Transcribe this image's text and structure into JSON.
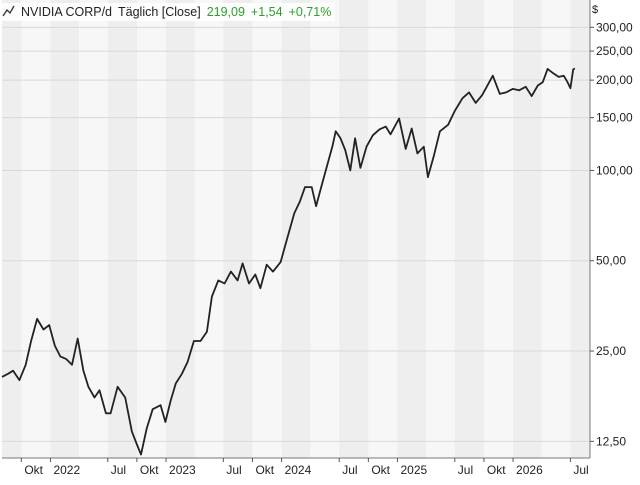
{
  "header": {
    "instrument": "NVIDIA CORP/d",
    "mode": "Täglich [Close]",
    "last": "219,09",
    "change": "+1,54",
    "change_pct": "+0,71%"
  },
  "currency_label": "$",
  "colors": {
    "line": "#222222",
    "positive": "#2ca02c",
    "band_shaded": "#eeeeee",
    "band_light": "#f7f7f7",
    "grid": "#d8d8d8",
    "text": "#222222"
  },
  "chart_data": {
    "type": "line",
    "title": "NVIDIA CORP/d",
    "y_scale": "log",
    "ylim": [
      11,
      370
    ],
    "y_ticks": [
      {
        "value": 12.5,
        "label": "12,50"
      },
      {
        "value": 25,
        "label": "25,00"
      },
      {
        "value": 50,
        "label": "50,00"
      },
      {
        "value": 100,
        "label": "100,00"
      },
      {
        "value": 150,
        "label": "150,00"
      },
      {
        "value": 200,
        "label": "200,00"
      },
      {
        "value": 250,
        "label": "250,00"
      },
      {
        "value": 300,
        "label": "300,00"
      }
    ],
    "x_range": [
      "2021-08-01",
      "2026-09-01"
    ],
    "x_ticks": [
      {
        "date": "2021-10-01",
        "label": "Okt"
      },
      {
        "date": "2022-01-01",
        "label": "2022"
      },
      {
        "date": "2022-07-01",
        "label": "Jul"
      },
      {
        "date": "2022-10-01",
        "label": "Okt"
      },
      {
        "date": "2023-01-01",
        "label": "2023"
      },
      {
        "date": "2023-07-01",
        "label": "Jul"
      },
      {
        "date": "2023-10-01",
        "label": "Okt"
      },
      {
        "date": "2024-01-01",
        "label": "2024"
      },
      {
        "date": "2024-07-01",
        "label": "Jul"
      },
      {
        "date": "2024-10-01",
        "label": "Okt"
      },
      {
        "date": "2025-01-01",
        "label": "2025"
      },
      {
        "date": "2025-07-01",
        "label": "Jul"
      },
      {
        "date": "2025-10-01",
        "label": "Okt"
      },
      {
        "date": "2026-01-01",
        "label": "2026"
      },
      {
        "date": "2026-07-01",
        "label": "Jul"
      }
    ],
    "series": [
      {
        "points": [
          [
            "2021-08-01",
            20.5
          ],
          [
            "2021-08-20",
            21.0
          ],
          [
            "2021-09-05",
            21.5
          ],
          [
            "2021-09-25",
            20.0
          ],
          [
            "2021-10-15",
            22.5
          ],
          [
            "2021-11-01",
            27.0
          ],
          [
            "2021-11-20",
            32.0
          ],
          [
            "2021-12-10",
            29.5
          ],
          [
            "2021-12-28",
            30.5
          ],
          [
            "2022-01-15",
            26.0
          ],
          [
            "2022-02-01",
            24.0
          ],
          [
            "2022-02-20",
            23.5
          ],
          [
            "2022-03-10",
            22.5
          ],
          [
            "2022-03-28",
            27.5
          ],
          [
            "2022-04-15",
            21.5
          ],
          [
            "2022-05-01",
            19.0
          ],
          [
            "2022-05-20",
            17.5
          ],
          [
            "2022-06-05",
            18.5
          ],
          [
            "2022-06-25",
            15.5
          ],
          [
            "2022-07-10",
            15.5
          ],
          [
            "2022-08-01",
            19.0
          ],
          [
            "2022-08-25",
            17.5
          ],
          [
            "2022-09-15",
            13.5
          ],
          [
            "2022-10-01",
            12.2
          ],
          [
            "2022-10-14",
            11.3
          ],
          [
            "2022-11-01",
            13.8
          ],
          [
            "2022-11-20",
            16.0
          ],
          [
            "2022-12-15",
            16.5
          ],
          [
            "2022-12-30",
            14.5
          ],
          [
            "2023-01-15",
            17.0
          ],
          [
            "2023-02-01",
            19.5
          ],
          [
            "2023-02-20",
            21.0
          ],
          [
            "2023-03-10",
            23.0
          ],
          [
            "2023-03-30",
            27.0
          ],
          [
            "2023-04-20",
            27.0
          ],
          [
            "2023-05-10",
            29.0
          ],
          [
            "2023-05-26",
            38.0
          ],
          [
            "2023-06-15",
            43.0
          ],
          [
            "2023-07-05",
            42.0
          ],
          [
            "2023-07-25",
            46.0
          ],
          [
            "2023-08-15",
            43.0
          ],
          [
            "2023-08-31",
            49.0
          ],
          [
            "2023-09-20",
            42.0
          ],
          [
            "2023-10-10",
            45.0
          ],
          [
            "2023-10-26",
            40.5
          ],
          [
            "2023-11-15",
            48.5
          ],
          [
            "2023-12-05",
            46.0
          ],
          [
            "2023-12-29",
            49.5
          ],
          [
            "2024-01-20",
            60.0
          ],
          [
            "2024-02-10",
            72.0
          ],
          [
            "2024-02-28",
            79.0
          ],
          [
            "2024-03-15",
            88.0
          ],
          [
            "2024-04-05",
            88.0
          ],
          [
            "2024-04-19",
            76.0
          ],
          [
            "2024-05-05",
            88.0
          ],
          [
            "2024-05-24",
            104.0
          ],
          [
            "2024-06-10",
            121.0
          ],
          [
            "2024-06-20",
            135.0
          ],
          [
            "2024-07-05",
            128.0
          ],
          [
            "2024-07-20",
            117.0
          ],
          [
            "2024-08-05",
            100.0
          ],
          [
            "2024-08-20",
            128.0
          ],
          [
            "2024-09-06",
            102.0
          ],
          [
            "2024-09-25",
            120.0
          ],
          [
            "2024-10-15",
            131.0
          ],
          [
            "2024-11-05",
            137.0
          ],
          [
            "2024-11-25",
            140.0
          ],
          [
            "2024-12-10",
            132.0
          ],
          [
            "2025-01-06",
            149.0
          ],
          [
            "2025-01-27",
            118.0
          ],
          [
            "2025-02-15",
            138.0
          ],
          [
            "2025-03-05",
            114.0
          ],
          [
            "2025-03-25",
            120.0
          ],
          [
            "2025-04-07",
            95.0
          ],
          [
            "2025-04-25",
            111.0
          ],
          [
            "2025-05-15",
            135.0
          ],
          [
            "2025-06-10",
            142.0
          ],
          [
            "2025-07-01",
            158.0
          ],
          [
            "2025-07-25",
            174.0
          ],
          [
            "2025-08-15",
            182.0
          ],
          [
            "2025-09-05",
            168.0
          ],
          [
            "2025-09-25",
            178.0
          ],
          [
            "2025-10-05",
            186.0
          ],
          [
            "2025-10-29",
            207.0
          ],
          [
            "2025-11-20",
            180.0
          ],
          [
            "2025-12-10",
            182.0
          ],
          [
            "2025-12-31",
            187.0
          ],
          [
            "2026-01-20",
            185.0
          ],
          [
            "2026-02-10",
            190.0
          ],
          [
            "2026-03-01",
            177.0
          ],
          [
            "2026-03-20",
            192.0
          ],
          [
            "2026-04-05",
            197.0
          ],
          [
            "2026-04-20",
            218.0
          ],
          [
            "2026-05-05",
            212.0
          ],
          [
            "2026-05-25",
            205.0
          ],
          [
            "2026-06-10",
            207.0
          ],
          [
            "2026-06-22",
            197.0
          ],
          [
            "2026-07-01",
            188.0
          ],
          [
            "2026-07-10",
            217.0
          ],
          [
            "2026-07-15",
            219.09
          ]
        ]
      }
    ]
  }
}
